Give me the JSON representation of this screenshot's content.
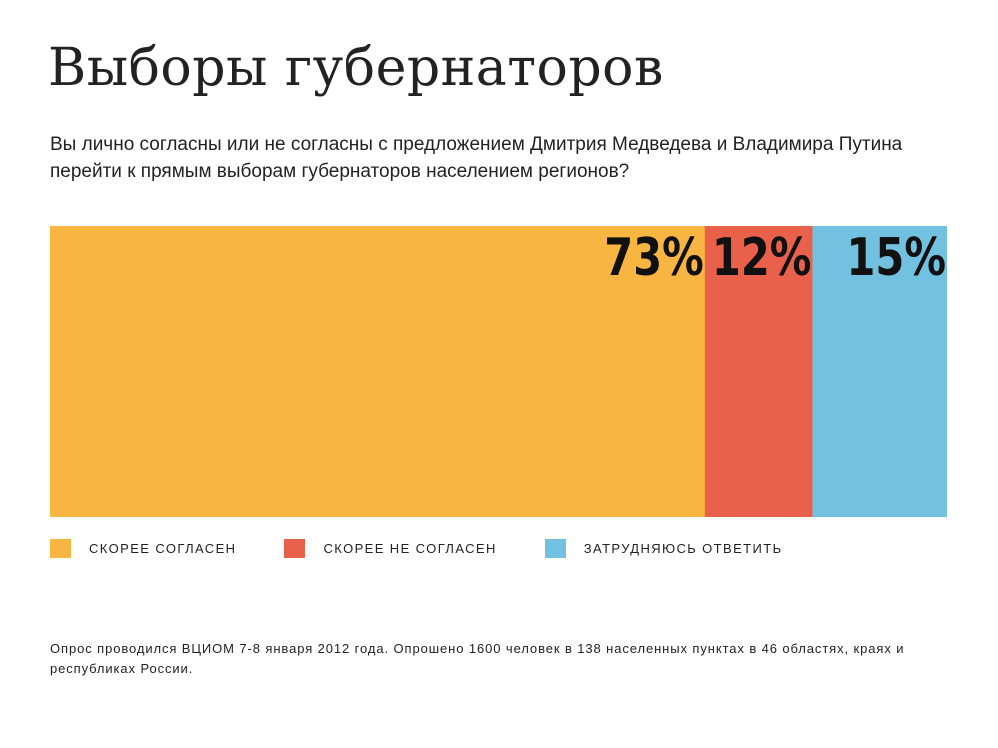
{
  "header": {
    "title": "Выборы губернаторов",
    "question": "Вы лично согласны или не согласны с предложением Дмитрия Медведева и Владимира Путина перейти к прямым выборам губернаторов населением регионов?"
  },
  "chart_data": {
    "type": "bar",
    "orientation": "horizontal-stacked-100",
    "categories": [
      "Скорее согласен",
      "Скорее не согласен",
      "Затрудняюсь ответить"
    ],
    "values": [
      73,
      12,
      15
    ],
    "value_labels": [
      "73%",
      "12%",
      "15%"
    ],
    "colors": [
      "#F9B541",
      "#E9604B",
      "#72C1E0"
    ],
    "title": "Выборы губернаторов",
    "subtitle": "Вы лично согласны или не согласны с предложением Дмитрия Медведева и Владимира Путина перейти к прямым выборам губернаторов населением регионов?",
    "legend_position": "bottom-left",
    "grid": false
  },
  "legend": {
    "items": [
      {
        "label": "Скорее согласен",
        "color": "#F9B541"
      },
      {
        "label": "Скорее не согласен",
        "color": "#E9604B"
      },
      {
        "label": "Затрудняюсь ответить",
        "color": "#72C1E0"
      }
    ]
  },
  "footnote": {
    "text": "Опрос проводился ВЦИОМ 7-8 января 2012 года. Опрошено 1600 человек в 138 населенных пунктах в 46 областях, краях и республиках России."
  }
}
